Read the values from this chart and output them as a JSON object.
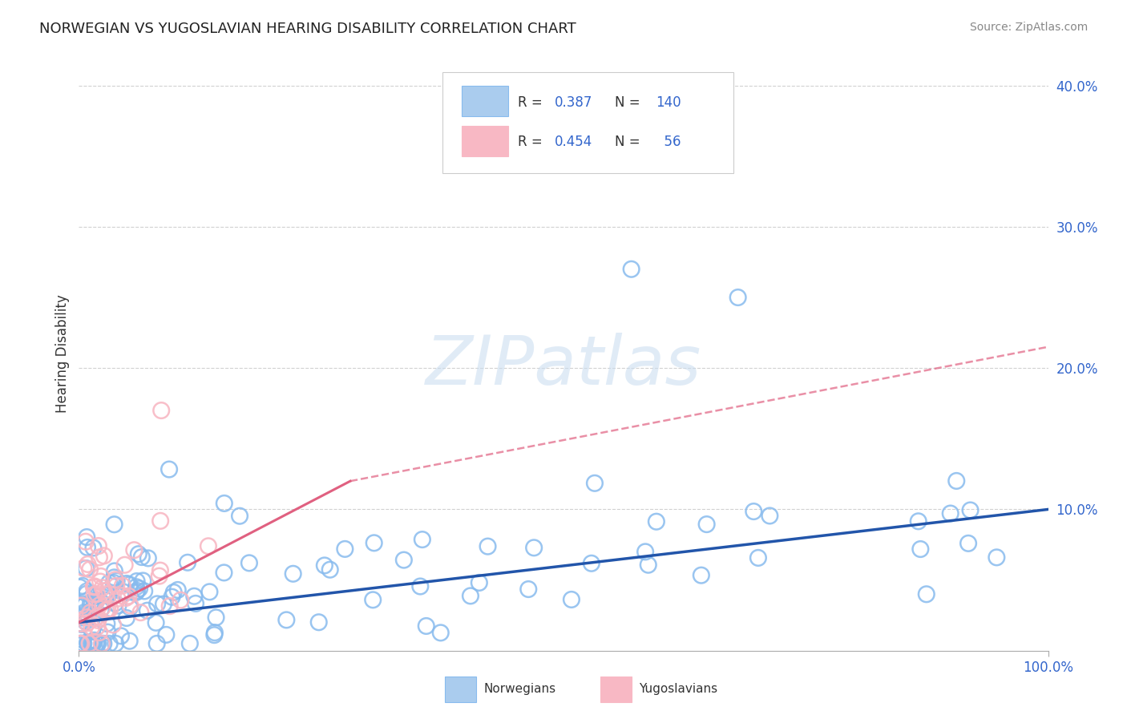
{
  "title": "NORWEGIAN VS YUGOSLAVIAN HEARING DISABILITY CORRELATION CHART",
  "source": "Source: ZipAtlas.com",
  "ylabel": "Hearing Disability",
  "norwegian_R": 0.387,
  "norwegian_N": 140,
  "yugoslavian_R": 0.454,
  "yugoslavian_N": 56,
  "norwegian_color": "#88BBEE",
  "norwegian_edge_color": "#88BBEE",
  "norwegian_line_color": "#2255AA",
  "yugoslavian_color": "#F8B8C4",
  "yugoslavian_edge_color": "#F8B8C4",
  "yugoslavian_line_color": "#E06080",
  "background_color": "#FFFFFF",
  "legend_box_color_norwegian": "#AACCEE",
  "legend_box_color_yugoslavian": "#F8B8C4",
  "text_blue": "#3366CC",
  "text_dark": "#333333",
  "grid_color": "#CCCCCC",
  "nor_line_x0": 0.0,
  "nor_line_x1": 1.0,
  "nor_line_y0": 0.02,
  "nor_line_y1": 0.1,
  "yug_line_x0": 0.0,
  "yug_line_x1": 0.28,
  "yug_line_y0": 0.02,
  "yug_line_y1": 0.12,
  "yug_line_dash_x0": 0.28,
  "yug_line_dash_x1": 1.0,
  "yug_line_dash_y0": 0.12,
  "yug_line_dash_y1": 0.215,
  "xlim_min": 0.0,
  "xlim_max": 1.0,
  "ylim_min": 0.0,
  "ylim_max": 0.42,
  "yticks": [
    0.1,
    0.2,
    0.3,
    0.4
  ],
  "ytick_labels": [
    "10.0%",
    "20.0%",
    "30.0%",
    "40.0%"
  ]
}
